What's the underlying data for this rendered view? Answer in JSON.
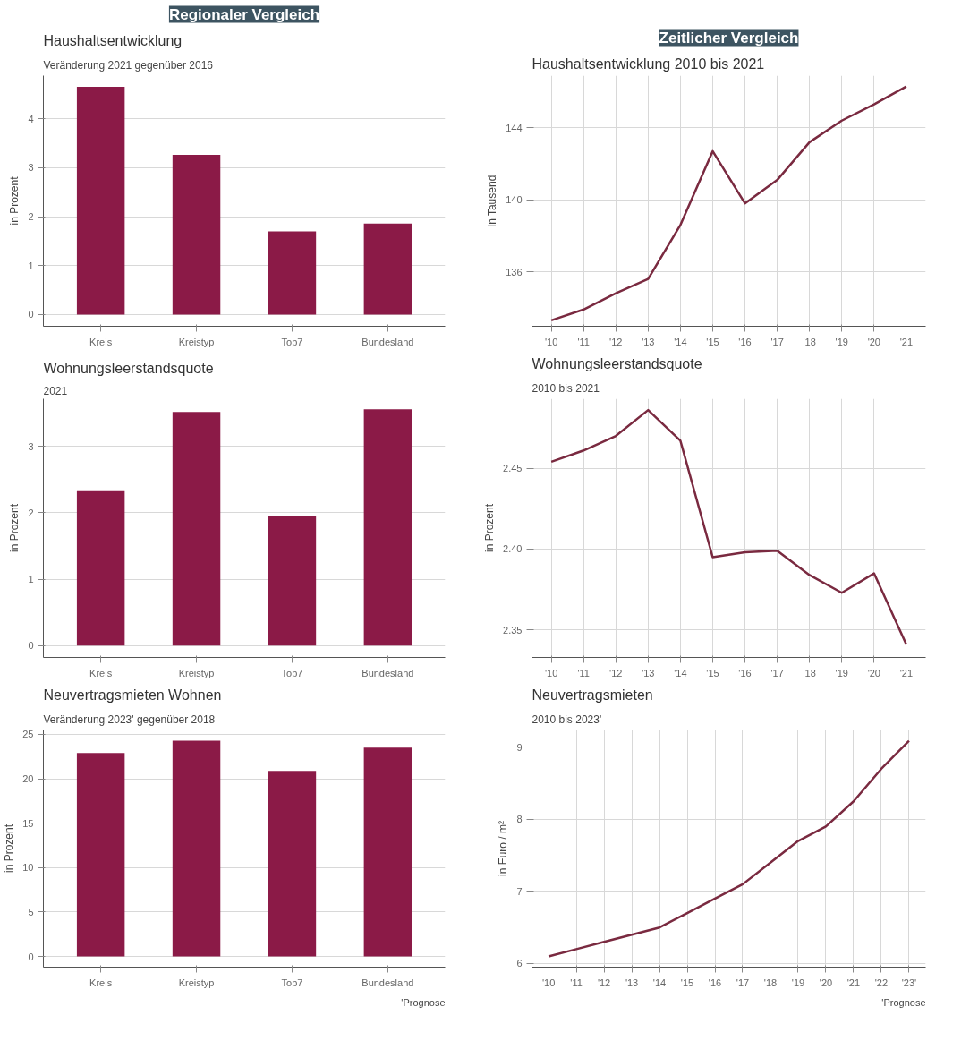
{
  "chart_data": [
    {
      "type": "bar",
      "title": "Haushaltsentwicklung",
      "subtitle": "Veränderung 2021 gegenüber 2016",
      "ylabel": "in Prozent",
      "annotations": [
        "Regionaler Vergleich"
      ],
      "categories": [
        "Kreis",
        "Kreistyp",
        "Top7",
        "Bundesland"
      ],
      "values": [
        4.65,
        3.26,
        1.7,
        1.86
      ],
      "color": "#8b1a47",
      "ylim": [
        -0.24,
        4.88
      ],
      "yticks": [
        0,
        1,
        2,
        3,
        4
      ],
      "grid": "y"
    },
    {
      "type": "line",
      "title": "Haushaltsentwicklung 2010 bis 2021",
      "ylabel": "in Tausend",
      "annotations": [
        "Zeitlicher Vergleich"
      ],
      "categories": [
        "'10",
        "'11",
        "'12",
        "'13",
        "'14",
        "'15",
        "'16",
        "'17",
        "'18",
        "'19",
        "'20",
        "'21"
      ],
      "values": [
        133.3,
        133.9,
        134.8,
        135.6,
        138.6,
        142.7,
        139.8,
        141.1,
        143.2,
        144.4,
        145.3,
        146.3
      ],
      "color": "#7a2a40",
      "ylim": [
        132.97,
        146.9
      ],
      "yticks": [
        136,
        140,
        144
      ],
      "grid": true
    },
    {
      "type": "bar",
      "title": "Wohnungsleerstandsquote",
      "subtitle": "2021",
      "ylabel": "in Prozent",
      "categories": [
        "Kreis",
        "Kreistyp",
        "Top7",
        "Bundesland"
      ],
      "values": [
        2.34,
        3.52,
        1.95,
        3.56
      ],
      "color": "#8b1a47",
      "ylim": [
        -0.18,
        3.72
      ],
      "yticks": [
        0,
        1,
        2,
        3
      ],
      "grid": "y"
    },
    {
      "type": "line",
      "title": "Wohnungsleerstandsquote",
      "subtitle": "2010 bis 2021",
      "ylabel": "in Prozent",
      "categories": [
        "'10",
        "'11",
        "'12",
        "'13",
        "'14",
        "'15",
        "'16",
        "'17",
        "'18",
        "'19",
        "'20",
        "'21"
      ],
      "values": [
        2.454,
        2.461,
        2.47,
        2.486,
        2.467,
        2.395,
        2.398,
        2.399,
        2.384,
        2.373,
        2.385,
        2.341
      ],
      "color": "#7a2a40",
      "ylim": [
        2.333,
        2.493
      ],
      "yticks": [
        {
          "value": 2.35,
          "label": "2.35"
        },
        {
          "value": 2.4,
          "label": "2.40"
        },
        {
          "value": 2.45,
          "label": "2.45"
        }
      ],
      "grid": true
    },
    {
      "type": "bar",
      "title": "Neuvertragsmieten Wohnen",
      "subtitle": "Veränderung 2023' gegenüber 2018",
      "ylabel": "in Prozent",
      "annotations": [
        "'Prognose"
      ],
      "categories": [
        "Kreis",
        "Kreistyp",
        "Top7",
        "Bundesland"
      ],
      "values": [
        22.9,
        24.3,
        20.9,
        23.5
      ],
      "color": "#8b1a47",
      "ylim": [
        -1.2,
        25.5
      ],
      "yticks": [
        0,
        5,
        10,
        15,
        20,
        25
      ],
      "grid": "y"
    },
    {
      "type": "line",
      "title": "Neuvertragsmieten",
      "subtitle": "2010 bis 2023'",
      "ylabel": "in Euro / m²",
      "annotations": [
        "'Prognose"
      ],
      "categories": [
        "'10",
        "'11",
        "'12",
        "'13",
        "'14",
        "'15",
        "'16",
        "'17",
        "'18",
        "'19",
        "'20",
        "'21",
        "'22",
        "'23'"
      ],
      "values": [
        6.1,
        6.2,
        6.3,
        6.4,
        6.5,
        6.7,
        6.9,
        7.1,
        7.4,
        7.7,
        7.9,
        8.25,
        8.7,
        9.09
      ],
      "color": "#7a2a40",
      "ylim": [
        5.95,
        9.24
      ],
      "yticks": [
        6,
        7,
        8,
        9
      ],
      "grid": true
    }
  ]
}
